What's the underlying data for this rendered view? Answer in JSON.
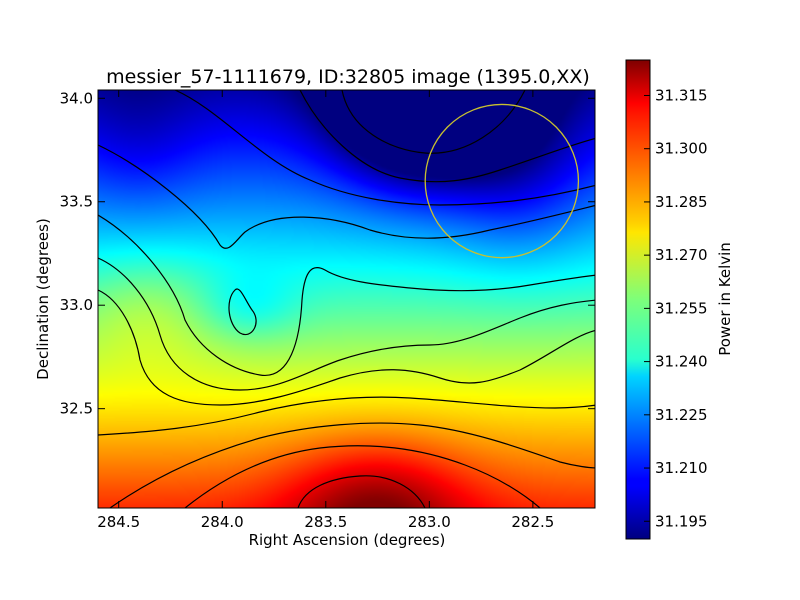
{
  "chart_data": {
    "type": "heatmap",
    "title": "messier_57-1111679, ID:32805 image (1395.0,XX)",
    "xlabel": "Right Ascension (degrees)",
    "ylabel": "Declination (degrees)",
    "xlim": [
      284.6,
      282.2
    ],
    "ylim": [
      32.02,
      34.04
    ],
    "xticks": [
      "284.5",
      "284.0",
      "283.5",
      "283.0",
      "282.5"
    ],
    "xtick_values": [
      284.5,
      284.0,
      283.5,
      283.0,
      282.5
    ],
    "yticks": [
      "32.5",
      "33.0",
      "33.5",
      "34.0"
    ],
    "ytick_values": [
      32.5,
      33.0,
      33.5,
      34.0
    ],
    "colorbar": {
      "label": "Power in Kelvin",
      "colormap": "jet",
      "range": [
        31.19,
        31.325
      ],
      "ticks": [
        "31.195",
        "31.210",
        "31.225",
        "31.240",
        "31.255",
        "31.270",
        "31.285",
        "31.300",
        "31.315"
      ],
      "tick_values": [
        31.195,
        31.21,
        31.225,
        31.24,
        31.255,
        31.27,
        31.285,
        31.3,
        31.315
      ]
    },
    "min_location": {
      "ra": 283.0,
      "dec": 34.0,
      "value": 31.19
    },
    "max_location": {
      "ra": 283.3,
      "dec": 32.05,
      "value": 31.32
    },
    "beam_circle": {
      "ra": 282.65,
      "dec": 33.6,
      "radius_deg": 0.37,
      "color": "#c8c030"
    }
  }
}
